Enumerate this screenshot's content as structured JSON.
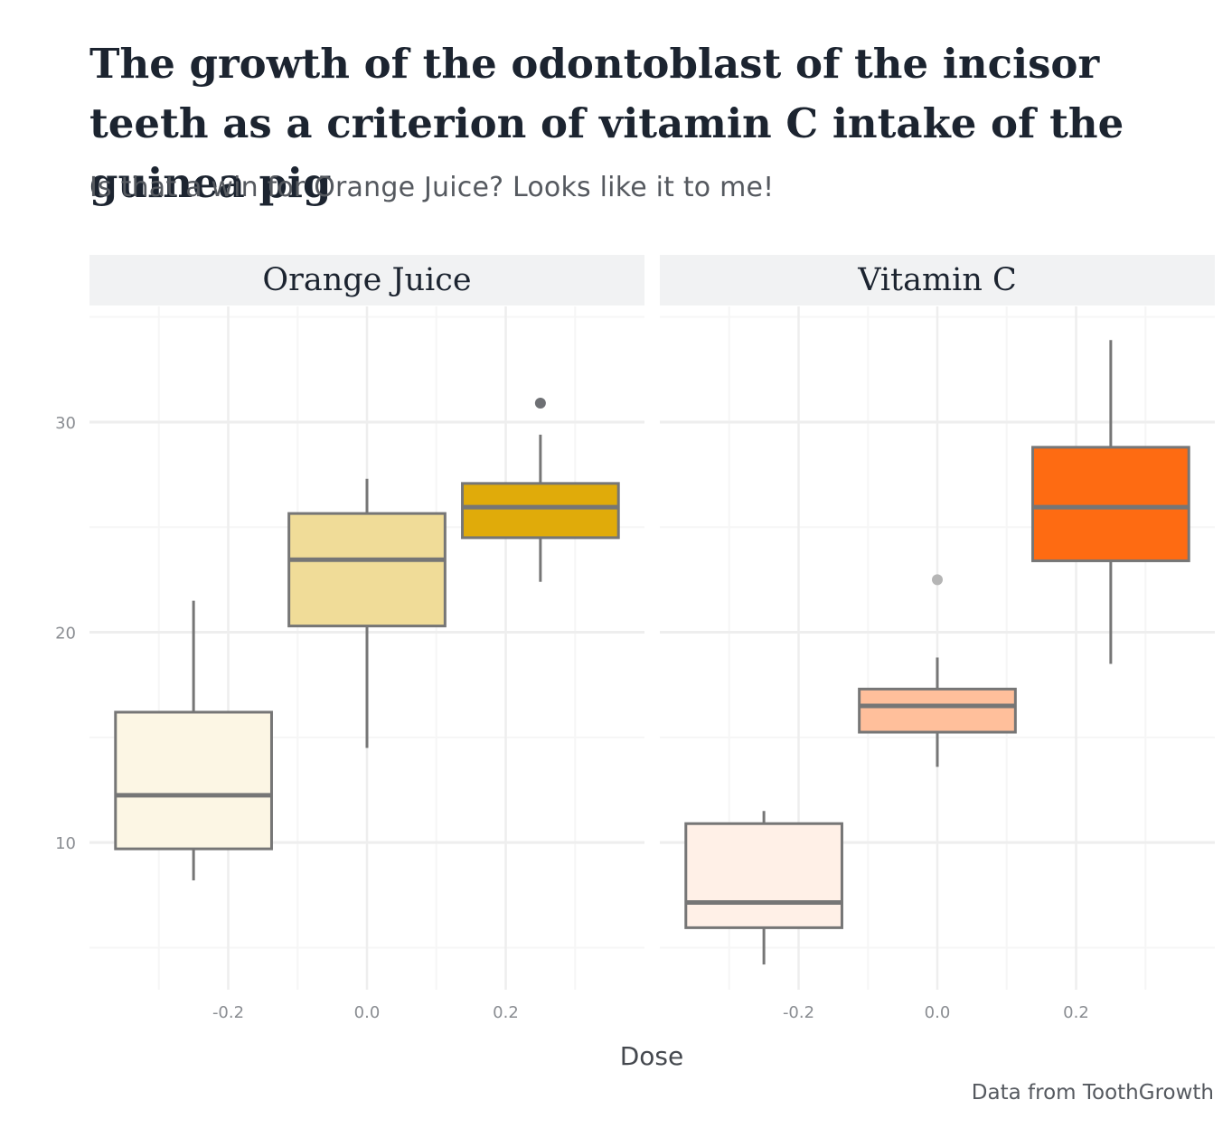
{
  "title": "The growth of the odontoblast of the incisor teeth as a criterion of vitamin C intake of the guinea pig",
  "subtitle": "Is that a win for Orange Juice? Looks like it to me!",
  "caption": "Data from ToothGrowth",
  "chart_data": {
    "type": "boxplot",
    "xlabel": "Dose",
    "ylabel": "",
    "xlim": [
      -0.4,
      0.4
    ],
    "ylim": [
      3,
      35.5
    ],
    "x_ticks": [
      "-0.2",
      "0.0",
      "0.2"
    ],
    "y_ticks": [
      "10",
      "20",
      "30"
    ],
    "grid": true,
    "legend": "none",
    "panels": [
      {
        "name": "Orange Juice",
        "boxes": [
          {
            "x": -0.25,
            "lower_whisker": 8.2,
            "q1": 9.7,
            "median": 12.25,
            "q3": 16.2,
            "upper_whisker": 21.5,
            "outliers": [],
            "fill": "#fcf6e4"
          },
          {
            "x": 0.0,
            "lower_whisker": 14.5,
            "q1": 20.3,
            "median": 23.45,
            "q3": 25.65,
            "upper_whisker": 27.3,
            "outliers": [],
            "fill": "#f0dc98"
          },
          {
            "x": 0.25,
            "lower_whisker": 22.4,
            "q1": 24.5,
            "median": 25.95,
            "q3": 27.08,
            "upper_whisker": 29.4,
            "outliers": [
              30.9
            ],
            "fill": "#e0ab0a"
          }
        ]
      },
      {
        "name": "Vitamin C",
        "boxes": [
          {
            "x": -0.25,
            "lower_whisker": 4.2,
            "q1": 5.95,
            "median": 7.15,
            "q3": 10.9,
            "upper_whisker": 11.5,
            "outliers": [],
            "fill": "#fff0e7"
          },
          {
            "x": 0.0,
            "lower_whisker": 13.6,
            "q1": 15.25,
            "median": 16.5,
            "q3": 17.3,
            "upper_whisker": 18.8,
            "outliers": [
              22.5
            ],
            "fill": "#ffbf9b"
          },
          {
            "x": 0.25,
            "lower_whisker": 18.5,
            "q1": 23.4,
            "median": 25.95,
            "q3": 28.8,
            "upper_whisker": 33.9,
            "outliers": [],
            "fill": "#fe6b12"
          }
        ]
      }
    ]
  }
}
